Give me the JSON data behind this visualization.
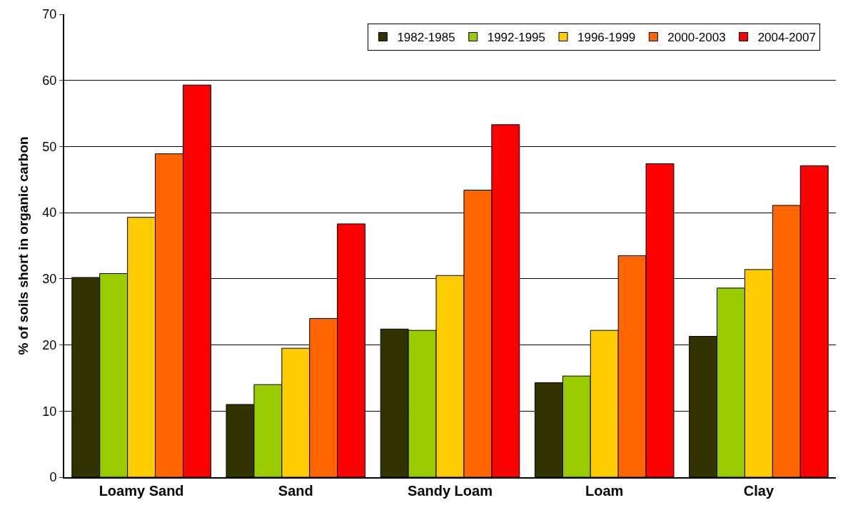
{
  "chart_data": {
    "type": "bar",
    "ylabel": "% of soils short in organic carbon",
    "categories": [
      "Loamy Sand",
      "Sand",
      "Sandy Loam",
      "Loam",
      "Clay"
    ],
    "series": [
      {
        "name": "1982-1985",
        "color": "#333300",
        "values": [
          30.2,
          11.0,
          22.4,
          14.3,
          21.3
        ]
      },
      {
        "name": "1992-1995",
        "color": "#99cc00",
        "values": [
          30.8,
          14.0,
          22.2,
          15.3,
          28.6
        ]
      },
      {
        "name": "1996-1999",
        "color": "#ffcc00",
        "values": [
          39.3,
          19.5,
          30.5,
          22.2,
          31.4
        ]
      },
      {
        "name": "2000-2003",
        "color": "#ff6600",
        "values": [
          48.9,
          24.0,
          43.4,
          33.5,
          41.1
        ]
      },
      {
        "name": "2004-2007",
        "color": "#ff0000",
        "values": [
          59.3,
          38.3,
          53.3,
          47.4,
          47.1
        ]
      }
    ],
    "ylim": [
      0,
      70
    ],
    "yticks": [
      0,
      10,
      20,
      30,
      40,
      50,
      60,
      70
    ],
    "grid": "y",
    "legend": "top right"
  }
}
